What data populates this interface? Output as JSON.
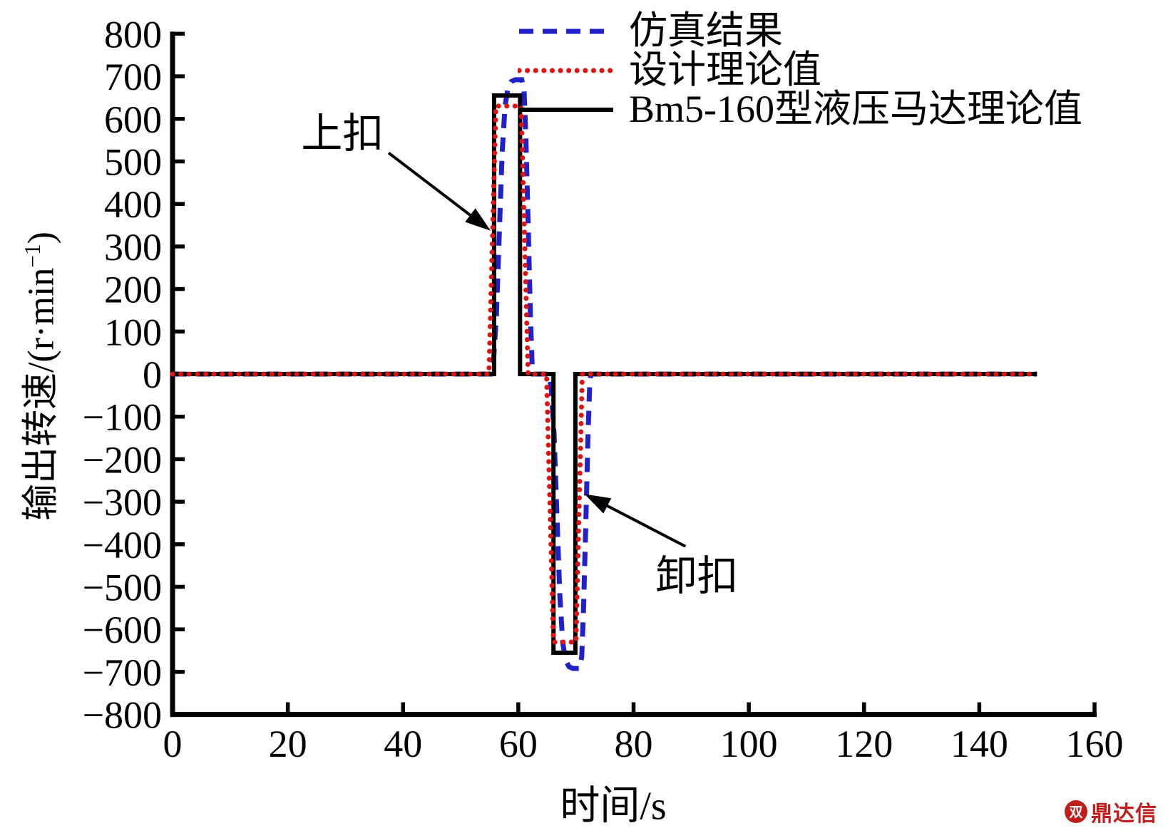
{
  "watermark": {
    "text": "鼎达信",
    "color": "#c21d1d",
    "logo_glyph": "双"
  },
  "chart_data": {
    "type": "line",
    "title": "",
    "xlabel": "时间/s",
    "ylabel": "输出转速/(r·min⁻¹)",
    "ylabel_parts": {
      "main": "输出转速/(r·min",
      "sup": "−1",
      "close": ")"
    },
    "xlim": [
      0,
      160
    ],
    "ylim": [
      -800,
      800
    ],
    "xticks": [
      0,
      20,
      40,
      60,
      80,
      100,
      120,
      140,
      160
    ],
    "yticks": [
      800,
      700,
      600,
      500,
      400,
      300,
      200,
      100,
      0,
      -100,
      -200,
      -300,
      -400,
      -500,
      -600,
      -700,
      -800
    ],
    "grid": false,
    "legend_position": "top-right-inside",
    "axis_color": "#000000",
    "series": [
      {
        "name": "仿真结果",
        "color": "#2121cc",
        "style": "dashed",
        "points": [
          [
            0,
            0
          ],
          [
            55.2,
            0
          ],
          [
            55.7,
            30
          ],
          [
            56.2,
            140
          ],
          [
            56.7,
            330
          ],
          [
            57.2,
            520
          ],
          [
            57.7,
            630
          ],
          [
            58.2,
            672
          ],
          [
            58.8,
            688
          ],
          [
            59.5,
            692
          ],
          [
            60.6,
            692
          ],
          [
            61.0,
            665
          ],
          [
            61.3,
            560
          ],
          [
            61.7,
            360
          ],
          [
            62.1,
            140
          ],
          [
            62.4,
            20
          ],
          [
            62.6,
            0
          ],
          [
            65.2,
            0
          ],
          [
            65.7,
            -30
          ],
          [
            66.2,
            -140
          ],
          [
            66.7,
            -330
          ],
          [
            67.2,
            -520
          ],
          [
            67.7,
            -630
          ],
          [
            68.2,
            -672
          ],
          [
            68.8,
            -688
          ],
          [
            69.5,
            -692
          ],
          [
            70.6,
            -692
          ],
          [
            71.0,
            -665
          ],
          [
            71.3,
            -560
          ],
          [
            71.7,
            -360
          ],
          [
            72.1,
            -140
          ],
          [
            72.4,
            -20
          ],
          [
            72.6,
            0
          ],
          [
            150,
            0
          ]
        ]
      },
      {
        "name": "设计理论值",
        "color": "#e01212",
        "style": "dotted",
        "points": [
          [
            0,
            0
          ],
          [
            54.9,
            0
          ],
          [
            56.1,
            630
          ],
          [
            60.5,
            630
          ],
          [
            61.7,
            0
          ],
          [
            64.9,
            0
          ],
          [
            66.1,
            -630
          ],
          [
            70.0,
            -630
          ],
          [
            71.1,
            0
          ],
          [
            150,
            0
          ]
        ]
      },
      {
        "name": "Bm5-160型液压马达理论值",
        "color": "#000000",
        "style": "solid",
        "points": [
          [
            0,
            0
          ],
          [
            55.8,
            0
          ],
          [
            55.8,
            655
          ],
          [
            60.3,
            655
          ],
          [
            60.3,
            0
          ],
          [
            66.1,
            0
          ],
          [
            66.1,
            -655
          ],
          [
            69.9,
            -655
          ],
          [
            69.9,
            0
          ],
          [
            150,
            0
          ]
        ]
      }
    ],
    "annotations": [
      {
        "text": "上扣",
        "text_pos": [
          29.5,
          575
        ],
        "arrow_from": [
          37.5,
          520
        ],
        "arrow_to": [
          55.2,
          337
        ]
      },
      {
        "text": "卸扣",
        "text_pos": [
          91,
          -465
        ],
        "arrow_from": [
          89,
          -405
        ],
        "arrow_to": [
          71.5,
          -282
        ]
      }
    ]
  }
}
